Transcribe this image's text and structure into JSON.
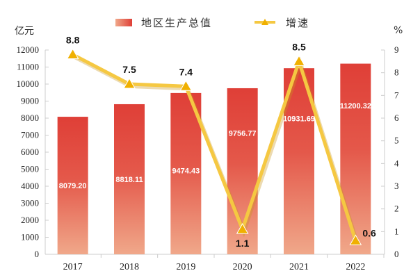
{
  "chart_data": {
    "type": "bar",
    "categories": [
      "2017",
      "2018",
      "2019",
      "2020",
      "2021",
      "2022"
    ],
    "series": [
      {
        "name": "地区生产总值",
        "type": "bar",
        "axis": "left",
        "values": [
          8079.2,
          8818.11,
          9474.43,
          9756.77,
          10931.69,
          11200.32
        ],
        "labels": [
          "8079.20",
          "8818.11",
          "9474.43",
          "9756.77",
          "10931.69",
          "11200.32"
        ],
        "color": "#e04a3c"
      },
      {
        "name": "增速",
        "type": "line",
        "axis": "right",
        "values": [
          8.8,
          7.5,
          7.4,
          1.1,
          8.5,
          0.6
        ],
        "labels": [
          "8.8",
          "7.5",
          "7.4",
          "1.1",
          "8.5",
          "0.6"
        ],
        "color": "#f5c842",
        "marker_color": "#f0b000"
      }
    ],
    "left_axis": {
      "unit": "亿元",
      "ylim": [
        0,
        12000
      ],
      "ticks": [
        "0",
        "1000",
        "2000",
        "3000",
        "4000",
        "5000",
        "6000",
        "7000",
        "8000",
        "9000",
        "10000",
        "11000",
        "12000"
      ]
    },
    "right_axis": {
      "unit": "%",
      "ylim": [
        0,
        9
      ],
      "ticks": [
        "0",
        "1",
        "2",
        "3",
        "4",
        "5",
        "6",
        "7",
        "8",
        "9"
      ]
    },
    "legend": {
      "placement": "top",
      "entries": [
        "地区生产总值",
        "增速"
      ]
    },
    "grid": false
  }
}
